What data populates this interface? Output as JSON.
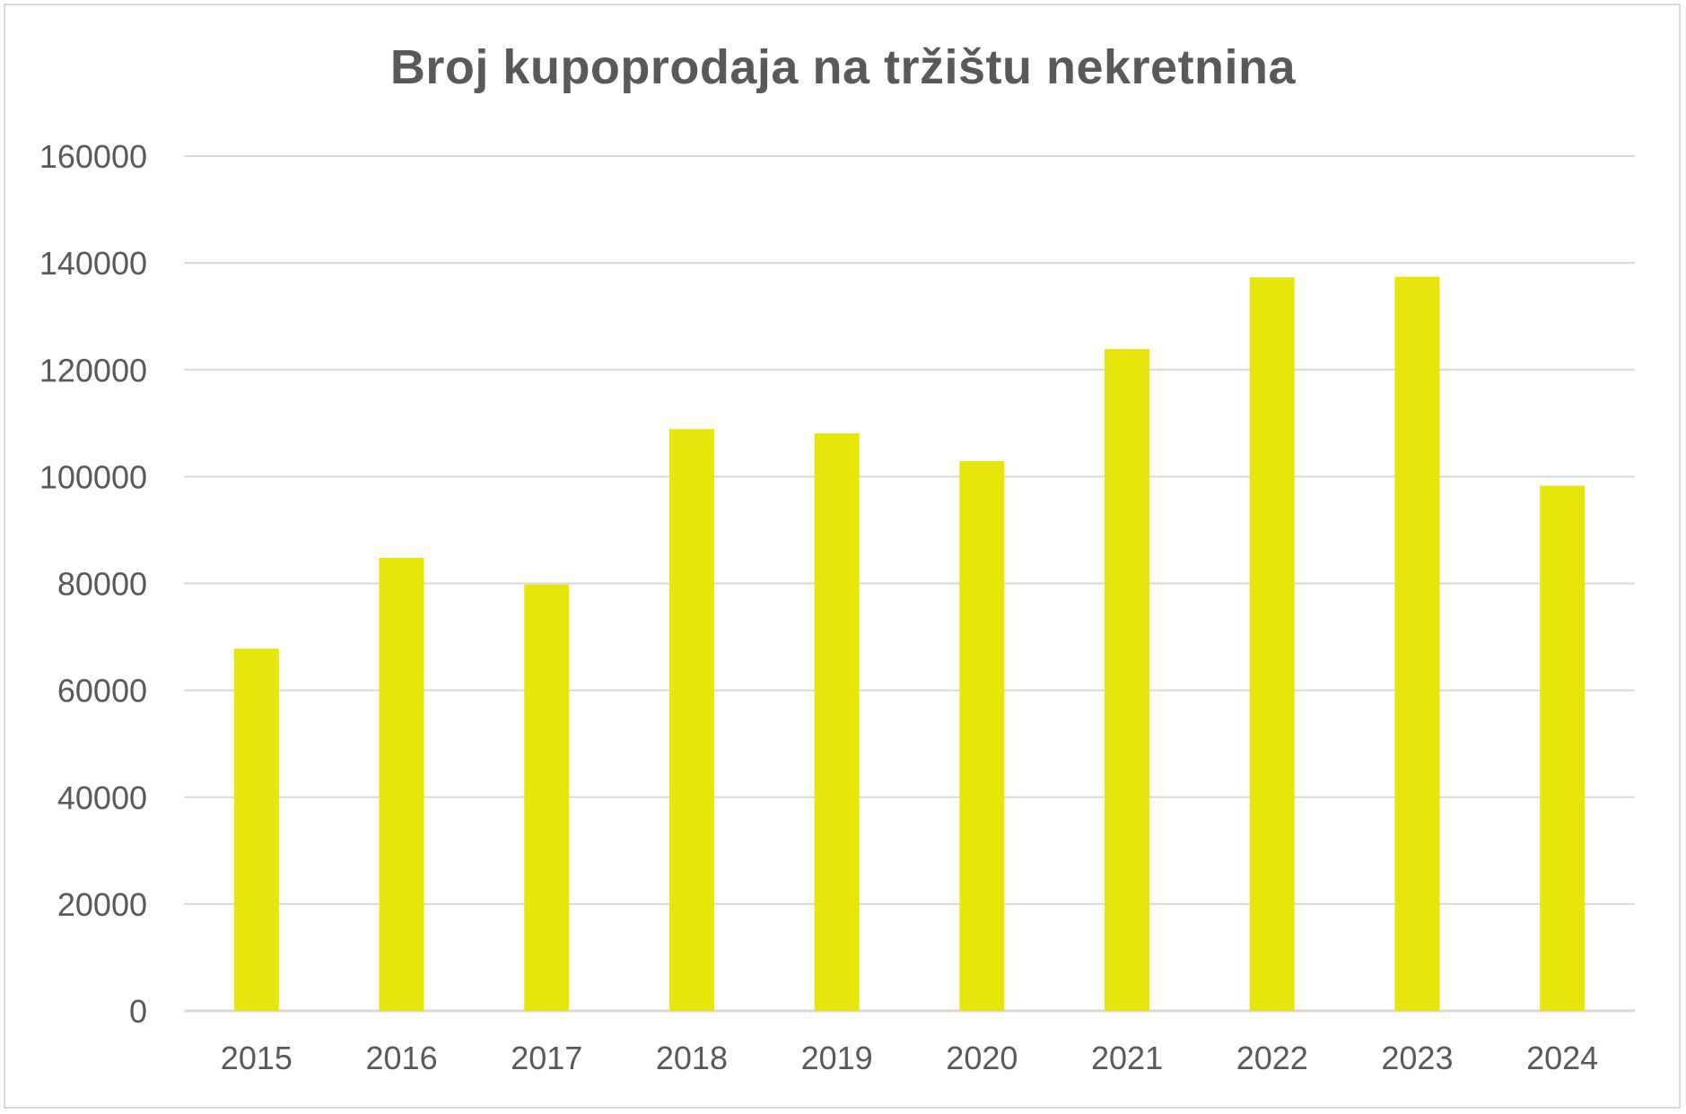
{
  "chart_data": {
    "type": "bar",
    "title": "Broj kupoprodaja na tržištu nekretnina",
    "xlabel": "",
    "ylabel": "",
    "categories": [
      "2015",
      "2016",
      "2017",
      "2018",
      "2019",
      "2020",
      "2021",
      "2022",
      "2023",
      "2024"
    ],
    "series": [
      {
        "values": [
          67800,
          84800,
          79800,
          108900,
          108100,
          102900,
          123900,
          137300,
          137400,
          98300
        ],
        "color": "#e8e50a"
      }
    ],
    "ylim": [
      0,
      160000
    ],
    "yticks": [
      "0",
      "20000",
      "40000",
      "60000",
      "80000",
      "100000",
      "120000",
      "140000",
      "160000"
    ],
    "grid": true,
    "legend": "none",
    "gridline_color": "#d9d9d9",
    "text_color": "#595959"
  }
}
